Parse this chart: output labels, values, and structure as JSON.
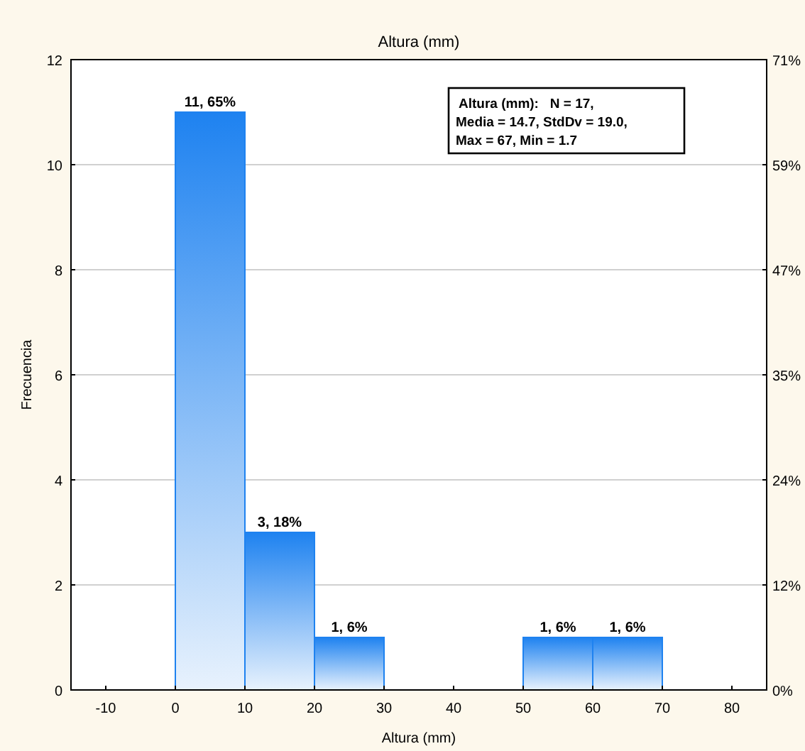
{
  "chart_data": {
    "type": "histogram",
    "title": "Altura (mm)",
    "xlabel": "Altura (mm)",
    "ylabel": "Frecuencia",
    "bins": [
      0,
      10,
      20,
      30,
      40,
      50,
      60,
      70
    ],
    "values": [
      11,
      3,
      1,
      0,
      0,
      1,
      1
    ],
    "value_labels": [
      "11, 65%",
      "3, 18%",
      "1, 6%",
      null,
      null,
      "1, 6%",
      "1, 6%"
    ],
    "color": "#1e82f0",
    "xlim": [
      -15,
      85
    ],
    "xticks": [
      -10,
      0,
      10,
      20,
      30,
      40,
      50,
      60,
      70,
      80
    ],
    "ylim": [
      0,
      12
    ],
    "yticks": [
      0,
      2,
      4,
      6,
      8,
      10,
      12
    ],
    "y2lim": [
      0,
      70.59
    ],
    "y2ticks": [
      {
        "value": 0,
        "label": "0%"
      },
      {
        "value": 11.76,
        "label": "12%"
      },
      {
        "value": 23.53,
        "label": "24%"
      },
      {
        "value": 35.29,
        "label": "35%"
      },
      {
        "value": 47.06,
        "label": "47%"
      },
      {
        "value": 58.82,
        "label": "59%"
      },
      {
        "value": 70.59,
        "label": "71%"
      }
    ],
    "grid": "y",
    "annotations": [
      "Altura (mm):   N = 17,",
      "Media = 14.7, StdDv = 19.0,",
      "Max = 67, Min = 1.7"
    ]
  }
}
